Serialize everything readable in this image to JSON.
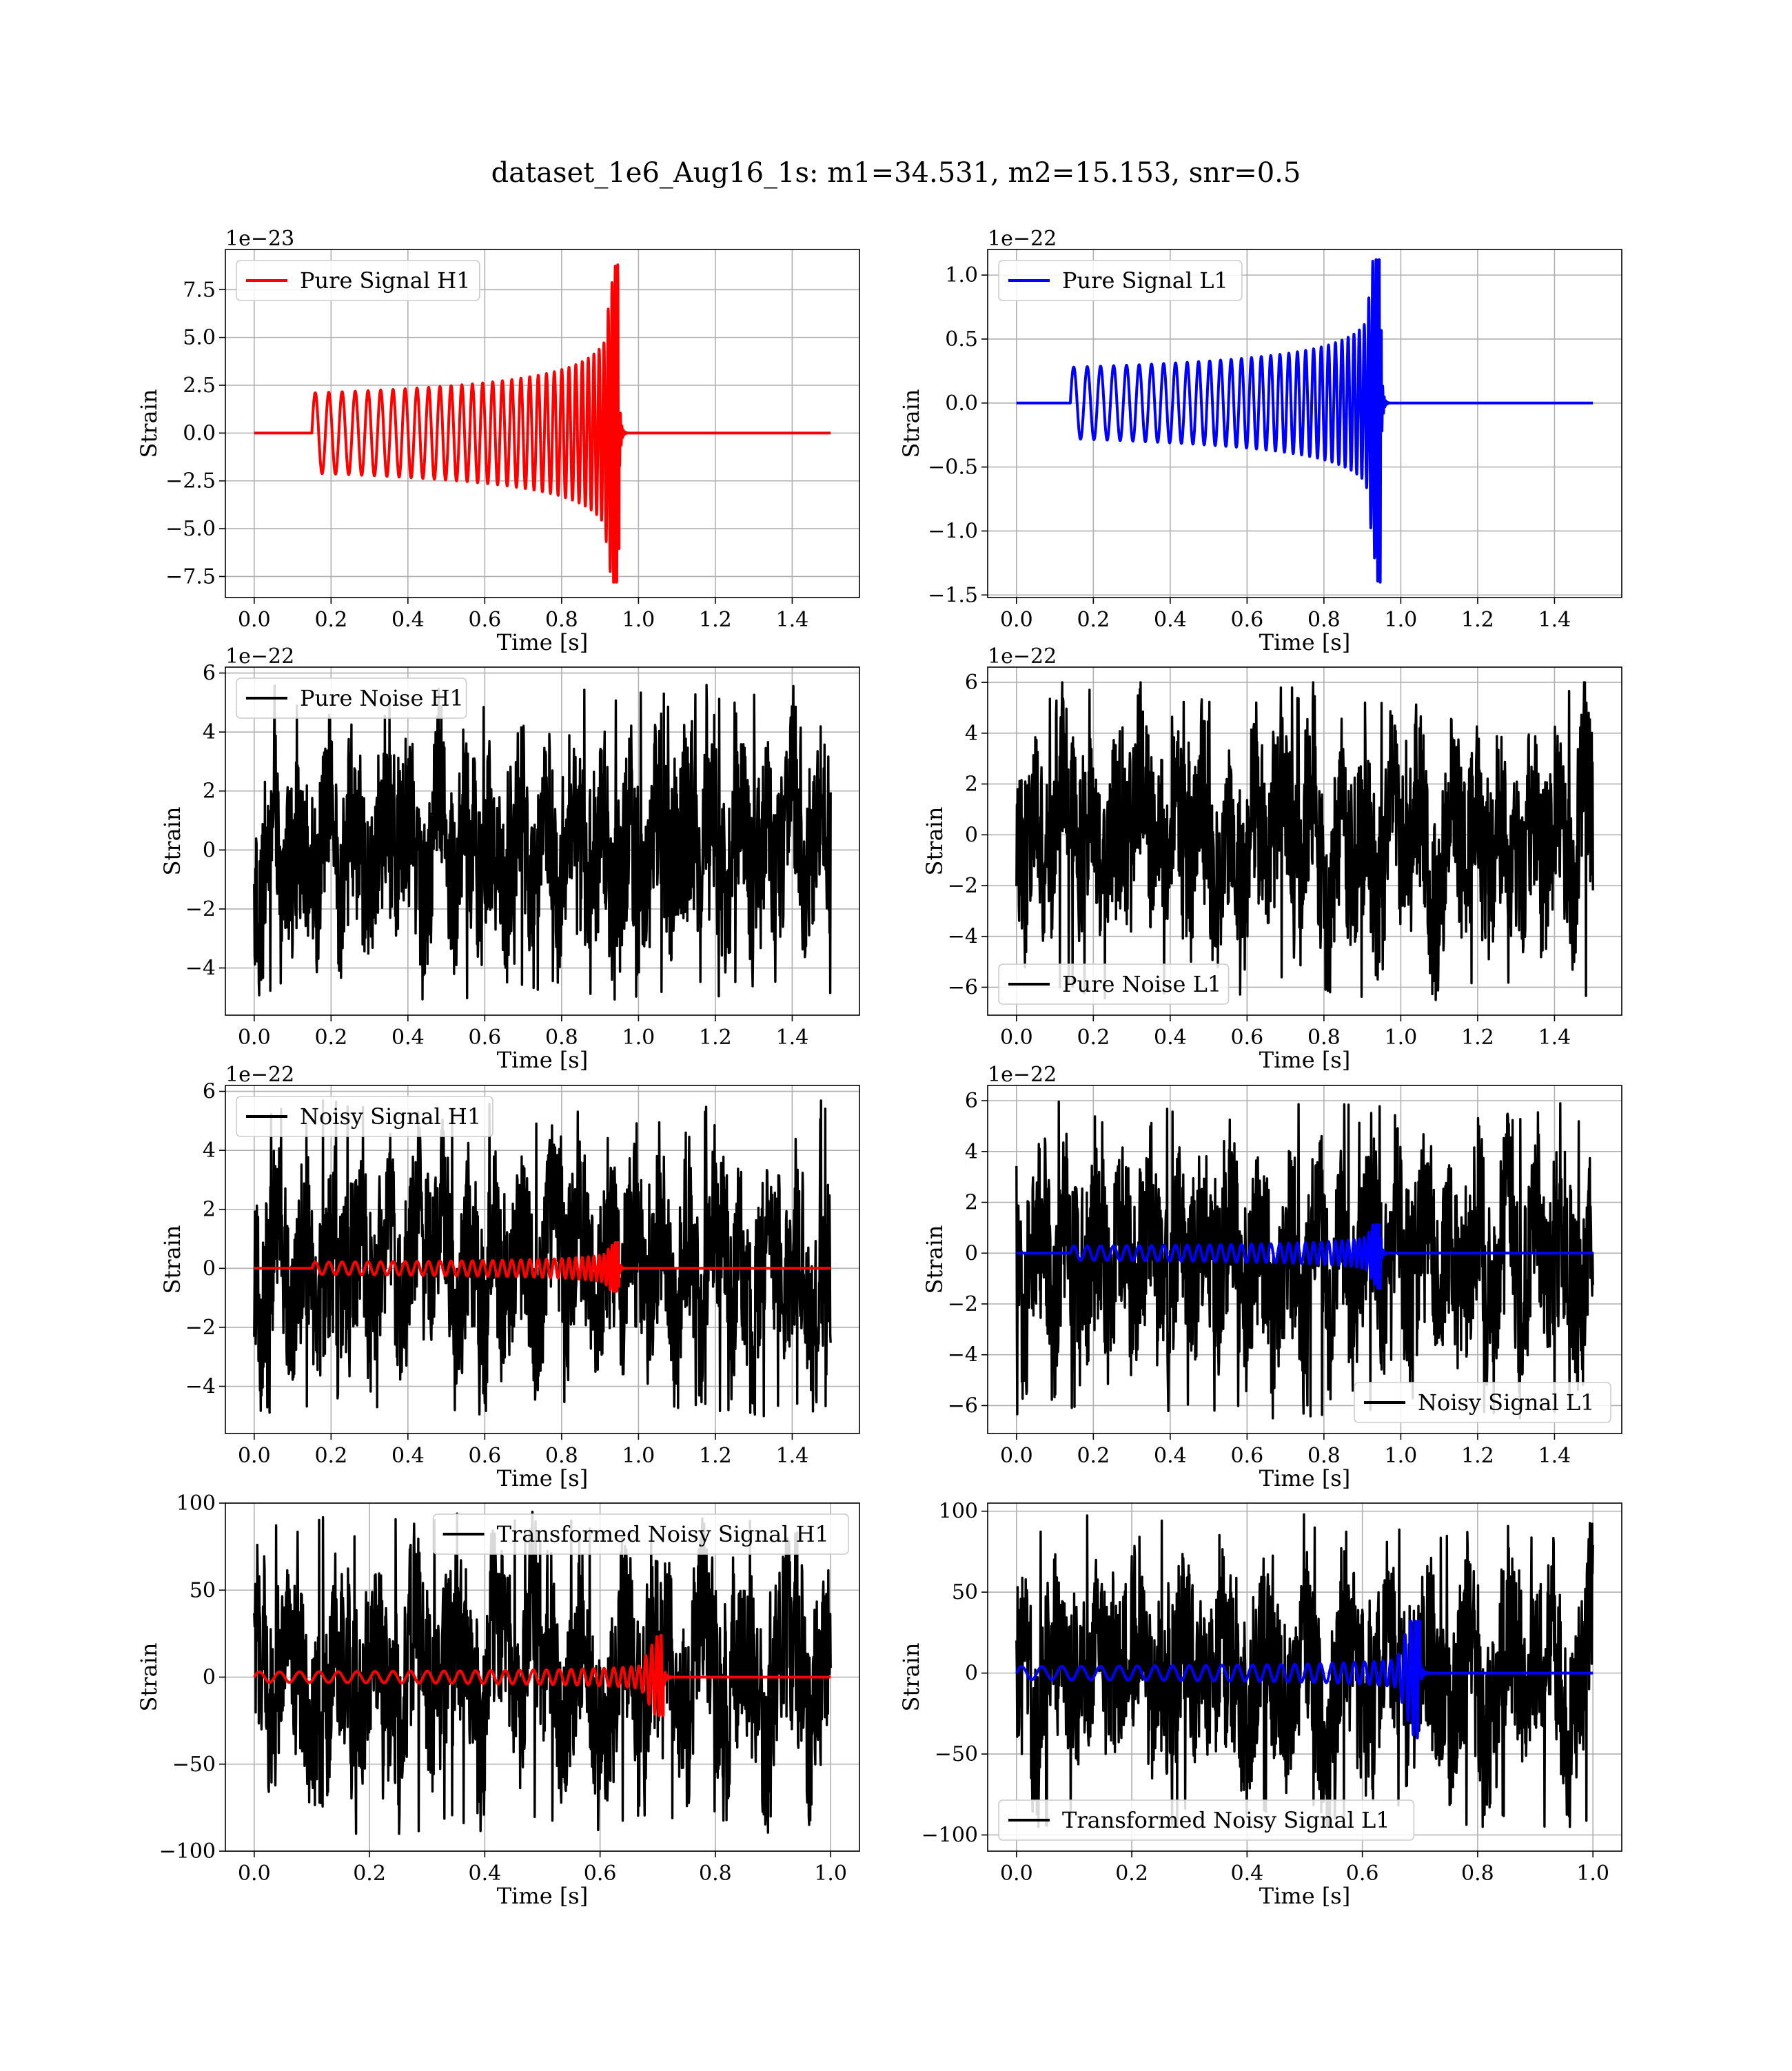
{
  "figure_title": "dataset_1e6_Aug16_1s: m1=34.531, m2=15.153, snr=0.5",
  "colors": {
    "h1_signal": "#ff0000",
    "l1_signal": "#0000ff",
    "noise": "#000000",
    "grid": "#b0b0b0"
  },
  "chart_data": [
    {
      "type": "line",
      "legend": "Pure Signal H1",
      "legend_position": "upper left",
      "series": [
        {
          "name": "Pure Signal H1",
          "color": "#ff0000",
          "kind": "chirp",
          "t_start": 0.15,
          "t_merge": 0.94,
          "start_amp": 2.1,
          "peak": 8.8,
          "trough": -7.8,
          "t_end": 1.5
        }
      ],
      "xlabel": "Time [s]",
      "ylabel": "Strain",
      "offset_text": "1e−23",
      "xlim": [
        -0.075,
        1.575
      ],
      "ylim": [
        -8.6,
        9.6
      ],
      "xticks": [
        0.0,
        0.2,
        0.4,
        0.6,
        0.8,
        1.0,
        1.2,
        1.4
      ],
      "yticks": [
        -7.5,
        -5.0,
        -2.5,
        0.0,
        2.5,
        5.0,
        7.5
      ],
      "xtick_labels": [
        "0.0",
        "0.2",
        "0.4",
        "0.6",
        "0.8",
        "1.0",
        "1.2",
        "1.4"
      ],
      "ytick_labels": [
        "−7.5",
        "−5.0",
        "−2.5",
        "0.0",
        "2.5",
        "5.0",
        "7.5"
      ],
      "grid": true
    },
    {
      "type": "line",
      "legend": "Pure Signal L1",
      "legend_position": "upper left",
      "series": [
        {
          "name": "Pure Signal L1",
          "color": "#0000ff",
          "kind": "chirp",
          "t_start": 0.14,
          "t_merge": 0.94,
          "start_amp": 0.28,
          "peak": 1.12,
          "trough": -1.4,
          "t_end": 1.5
        }
      ],
      "xlabel": "Time [s]",
      "ylabel": "Strain",
      "offset_text": "1e−22",
      "xlim": [
        -0.075,
        1.575
      ],
      "ylim": [
        -1.52,
        1.2
      ],
      "xticks": [
        0.0,
        0.2,
        0.4,
        0.6,
        0.8,
        1.0,
        1.2,
        1.4
      ],
      "yticks": [
        -1.5,
        -1.0,
        -0.5,
        0.0,
        0.5,
        1.0
      ],
      "xtick_labels": [
        "0.0",
        "0.2",
        "0.4",
        "0.6",
        "0.8",
        "1.0",
        "1.2",
        "1.4"
      ],
      "ytick_labels": [
        "−1.5",
        "−1.0",
        "−0.5",
        "0.0",
        "0.5",
        "1.0"
      ],
      "grid": true
    },
    {
      "type": "line",
      "legend": "Pure Noise H1",
      "legend_position": "upper left",
      "series": [
        {
          "name": "Pure Noise H1",
          "color": "#000000",
          "kind": "noise",
          "min": -5.1,
          "max": 5.7,
          "t_end": 1.5
        }
      ],
      "xlabel": "Time [s]",
      "ylabel": "Strain",
      "offset_text": "1e−22",
      "xlim": [
        -0.075,
        1.575
      ],
      "ylim": [
        -5.6,
        6.2
      ],
      "xticks": [
        0.0,
        0.2,
        0.4,
        0.6,
        0.8,
        1.0,
        1.2,
        1.4
      ],
      "yticks": [
        -4,
        -2,
        0,
        2,
        4,
        6
      ],
      "xtick_labels": [
        "0.0",
        "0.2",
        "0.4",
        "0.6",
        "0.8",
        "1.0",
        "1.2",
        "1.4"
      ],
      "ytick_labels": [
        "−4",
        "−2",
        "0",
        "2",
        "4",
        "6"
      ],
      "grid": true
    },
    {
      "type": "line",
      "legend": "Pure Noise L1",
      "legend_position": "lower left",
      "series": [
        {
          "name": "Pure Noise L1",
          "color": "#000000",
          "kind": "noise",
          "min": -6.5,
          "max": 6.0,
          "t_end": 1.5
        }
      ],
      "xlabel": "Time [s]",
      "ylabel": "Strain",
      "offset_text": "1e−22",
      "xlim": [
        -0.075,
        1.575
      ],
      "ylim": [
        -7.1,
        6.6
      ],
      "xticks": [
        0.0,
        0.2,
        0.4,
        0.6,
        0.8,
        1.0,
        1.2,
        1.4
      ],
      "yticks": [
        -6,
        -4,
        -2,
        0,
        2,
        4,
        6
      ],
      "xtick_labels": [
        "0.0",
        "0.2",
        "0.4",
        "0.6",
        "0.8",
        "1.0",
        "1.2",
        "1.4"
      ],
      "ytick_labels": [
        "−6",
        "−4",
        "−2",
        "0",
        "2",
        "4",
        "6"
      ],
      "grid": true
    },
    {
      "type": "line",
      "legend": "Noisy Signal H1",
      "legend_position": "upper left",
      "series": [
        {
          "name": "Noisy Signal H1",
          "color": "#000000",
          "kind": "noise",
          "min": -5.1,
          "max": 5.7,
          "t_end": 1.5
        },
        {
          "name": "",
          "color": "#ff0000",
          "kind": "chirp",
          "t_start": 0.15,
          "t_merge": 0.94,
          "start_amp": 0.21,
          "peak": 0.88,
          "trough": -0.78,
          "t_end": 1.5
        }
      ],
      "xlabel": "Time [s]",
      "ylabel": "Strain",
      "offset_text": "1e−22",
      "xlim": [
        -0.075,
        1.575
      ],
      "ylim": [
        -5.6,
        6.2
      ],
      "xticks": [
        0.0,
        0.2,
        0.4,
        0.6,
        0.8,
        1.0,
        1.2,
        1.4
      ],
      "yticks": [
        -4,
        -2,
        0,
        2,
        4,
        6
      ],
      "xtick_labels": [
        "0.0",
        "0.2",
        "0.4",
        "0.6",
        "0.8",
        "1.0",
        "1.2",
        "1.4"
      ],
      "ytick_labels": [
        "−4",
        "−2",
        "0",
        "2",
        "4",
        "6"
      ],
      "grid": true
    },
    {
      "type": "line",
      "legend": "Noisy Signal L1",
      "legend_position": "lower right",
      "series": [
        {
          "name": "Noisy Signal L1",
          "color": "#000000",
          "kind": "noise",
          "min": -6.5,
          "max": 6.0,
          "t_end": 1.5
        },
        {
          "name": "",
          "color": "#0000ff",
          "kind": "chirp",
          "t_start": 0.14,
          "t_merge": 0.94,
          "start_amp": 0.28,
          "peak": 1.12,
          "trough": -1.4,
          "t_end": 1.5
        }
      ],
      "xlabel": "Time [s]",
      "ylabel": "Strain",
      "offset_text": "1e−22",
      "xlim": [
        -0.075,
        1.575
      ],
      "ylim": [
        -7.1,
        6.6
      ],
      "xticks": [
        0.0,
        0.2,
        0.4,
        0.6,
        0.8,
        1.0,
        1.2,
        1.4
      ],
      "yticks": [
        -6,
        -4,
        -2,
        0,
        2,
        4,
        6
      ],
      "xtick_labels": [
        "0.0",
        "0.2",
        "0.4",
        "0.6",
        "0.8",
        "1.0",
        "1.2",
        "1.4"
      ],
      "ytick_labels": [
        "−6",
        "−4",
        "−2",
        "0",
        "2",
        "4",
        "6"
      ],
      "grid": true
    },
    {
      "type": "line",
      "legend": "Transformed Noisy Signal H1",
      "legend_position": "upper right",
      "series": [
        {
          "name": "Transformed Noisy Signal H1",
          "color": "#000000",
          "kind": "noise",
          "min": -90,
          "max": 95,
          "t_end": 1.0
        },
        {
          "name": "",
          "color": "#ff0000",
          "kind": "chirp",
          "t_start": 0.0,
          "t_merge": 0.7,
          "start_amp": 3,
          "peak": 24,
          "trough": -22,
          "t_end": 1.0
        }
      ],
      "xlabel": "Time [s]",
      "ylabel": "Strain",
      "offset_text": "",
      "xlim": [
        -0.05,
        1.05
      ],
      "ylim": [
        -100,
        100
      ],
      "xticks": [
        0.0,
        0.2,
        0.4,
        0.6,
        0.8,
        1.0
      ],
      "yticks": [
        -100,
        -50,
        0,
        50,
        100
      ],
      "xtick_labels": [
        "0.0",
        "0.2",
        "0.4",
        "0.6",
        "0.8",
        "1.0"
      ],
      "ytick_labels": [
        "−100",
        "−50",
        "0",
        "50",
        "100"
      ],
      "grid": true
    },
    {
      "type": "line",
      "legend": "Transformed Noisy Signal L1",
      "legend_position": "lower left",
      "series": [
        {
          "name": "Transformed Noisy Signal L1",
          "color": "#000000",
          "kind": "noise",
          "min": -95,
          "max": 98,
          "t_end": 1.0
        },
        {
          "name": "",
          "color": "#0000ff",
          "kind": "chirp",
          "t_start": 0.0,
          "t_merge": 0.69,
          "start_amp": 4,
          "peak": 32,
          "trough": -40,
          "t_end": 1.0
        }
      ],
      "xlabel": "Time [s]",
      "ylabel": "Strain",
      "offset_text": "",
      "xlim": [
        -0.05,
        1.05
      ],
      "ylim": [
        -110,
        105
      ],
      "xticks": [
        0.0,
        0.2,
        0.4,
        0.6,
        0.8,
        1.0
      ],
      "yticks": [
        -100,
        -50,
        0,
        50,
        100
      ],
      "xtick_labels": [
        "0.0",
        "0.2",
        "0.4",
        "0.6",
        "0.8",
        "1.0"
      ],
      "ytick_labels": [
        "−100",
        "−50",
        "0",
        "50",
        "100"
      ],
      "grid": true
    }
  ]
}
